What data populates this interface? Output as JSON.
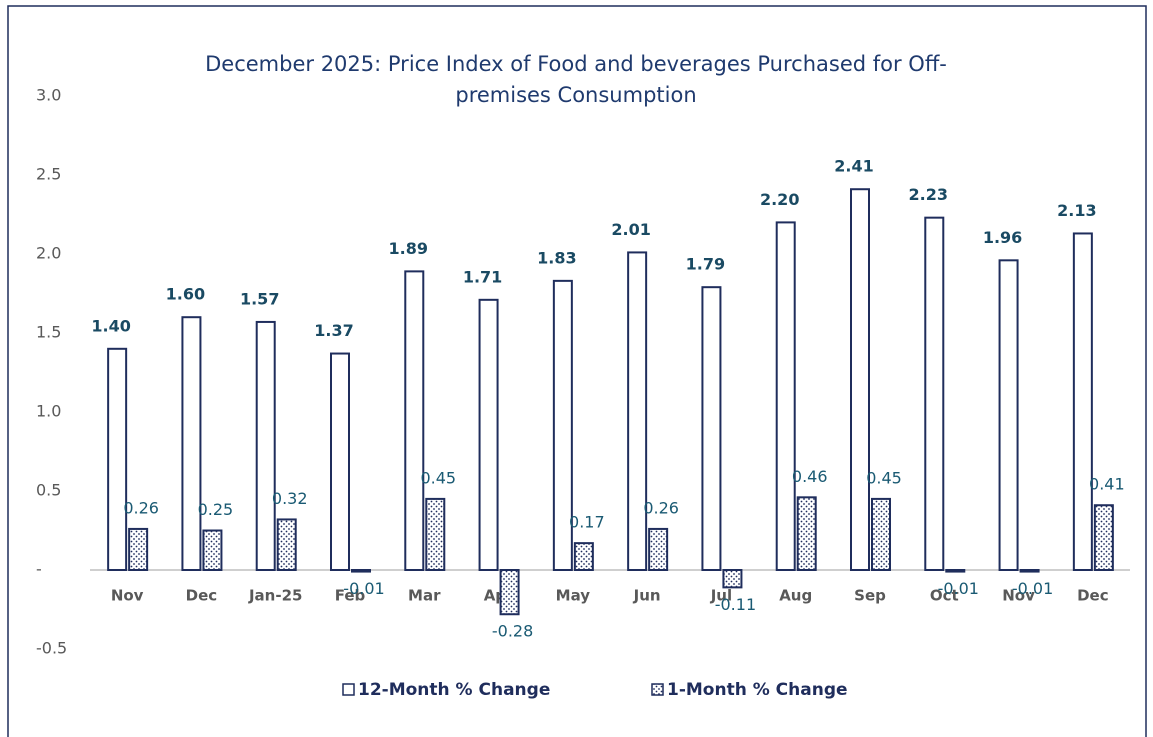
{
  "chart_data": {
    "type": "bar",
    "title": [
      "December 2025: Price Index of Food and beverages  Purchased for Off-",
      "premises Consumption"
    ],
    "categories": [
      "Nov",
      "Dec",
      "Jan-25",
      "Feb",
      "Mar",
      "Apr",
      "May",
      "Jun",
      "Jul",
      "Aug",
      "Sep",
      "Oct",
      "Nov",
      "Dec"
    ],
    "series": [
      {
        "name": "12-Month % Change",
        "color": "#1f2d5c",
        "fill": "solid",
        "values": [
          1.4,
          1.6,
          1.57,
          1.37,
          1.89,
          1.71,
          1.83,
          2.01,
          1.79,
          2.2,
          2.41,
          2.23,
          1.96,
          2.13
        ],
        "value_labels": [
          "1.40",
          "1.60",
          "1.57",
          "1.37",
          "1.89",
          "1.71",
          "1.83",
          "2.01",
          "1.79",
          "2.20",
          "2.41",
          "2.23",
          "1.96",
          "2.13"
        ]
      },
      {
        "name": "1-Month % Change",
        "color": "#1f2d5c",
        "fill": "dotted",
        "values": [
          0.26,
          0.25,
          0.32,
          -0.01,
          0.45,
          -0.28,
          0.17,
          0.26,
          -0.11,
          0.46,
          0.45,
          -0.01,
          -0.01,
          0.41
        ]
      }
    ],
    "ylim": [
      -0.5,
      3.0
    ],
    "yticks": [
      -0.5,
      {
        "value": 0,
        "label": "-"
      },
      0.5,
      {
        "value": 1,
        "label": "1.0"
      },
      1.5,
      {
        "value": 2,
        "label": "2.0"
      },
      2.5,
      {
        "value": 3,
        "label": "3.0"
      }
    ],
    "grid": false,
    "legend": "bottom"
  }
}
